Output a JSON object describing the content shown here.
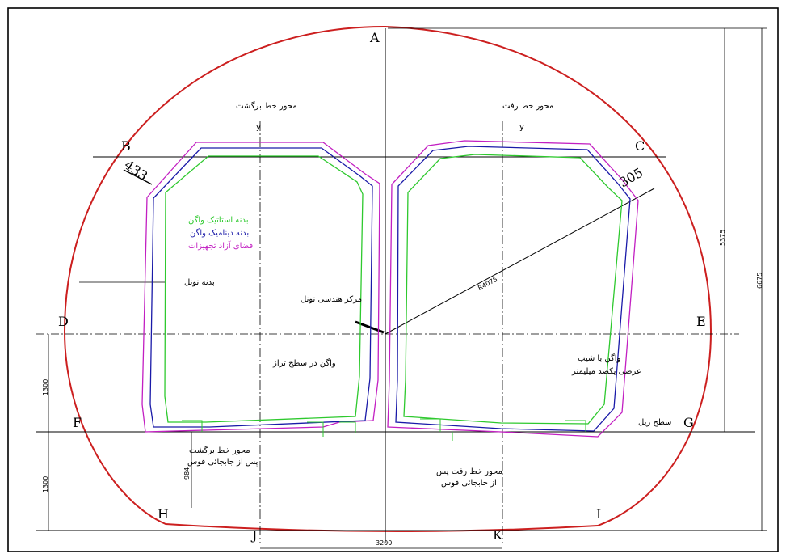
{
  "points": {
    "A": "A",
    "B": "B",
    "C": "C",
    "D": "D",
    "E": "E",
    "F": "F",
    "G": "G",
    "H": "H",
    "I": "I",
    "J": "J",
    "K": "K"
  },
  "labels": {
    "return_axis": "محور خط برگشت",
    "go_axis": "محور خط رفت",
    "y_left": "y",
    "y_right": "y",
    "tunnel_body": "بدنه تونل",
    "geometric_center": "مرکز هندسی تونل",
    "wagon_level": "واگن در سطح تراز",
    "wagon_slope_1": "واگن با شیب",
    "wagon_slope_2": "عرضی یکصد میلیمتر",
    "rail_level": "سطح ریل",
    "return_after_curve_1": "محور خط برگشت",
    "return_after_curve_2": "پس از جابجائی قوس",
    "go_after_curve_1": "محور خط رفت پس",
    "go_after_curve_2": "از جابجائی قوس"
  },
  "legend": {
    "static": "بدنه استاتیک واگن",
    "dynamic": "بدنه دینامیک واگن",
    "clearance": "فضای آزاد تجهیزات"
  },
  "dimensions": {
    "d433": "433",
    "d305": "305",
    "radius": "R4075",
    "d5375": "5375",
    "d6675": "6675",
    "d1300a": "1300",
    "d1300b": "1300",
    "d984": "984",
    "d3200": "3200"
  },
  "colors": {
    "tunnel": "#cc1f1f",
    "static": "#2ec92e",
    "dynamic": "#1a1aa8",
    "clearance": "#c21fc2",
    "lines": "#000000"
  }
}
